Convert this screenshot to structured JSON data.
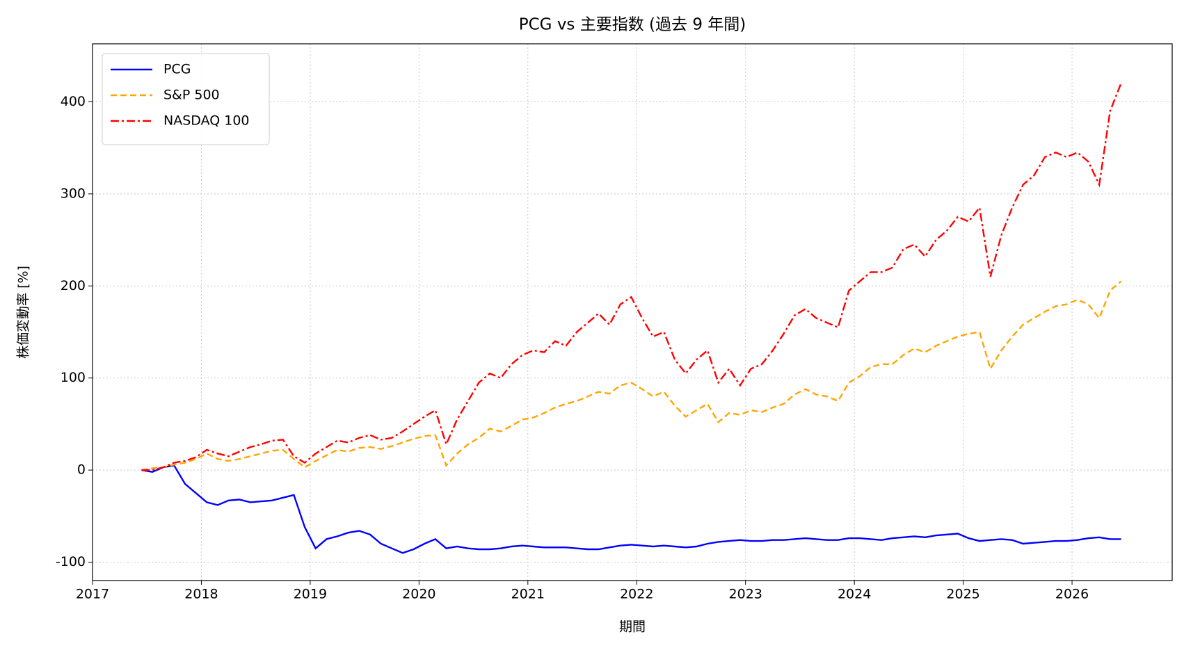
{
  "chart_data": {
    "type": "line",
    "title": "PCG vs 主要指数 (過去 9 年間)",
    "xlabel": "期間",
    "ylabel": "株価変動率 [%]",
    "x": [
      2017.45,
      2017.55,
      2017.65,
      2017.75,
      2017.85,
      2017.95,
      2018.05,
      2018.15,
      2018.25,
      2018.35,
      2018.45,
      2018.55,
      2018.65,
      2018.75,
      2018.85,
      2018.95,
      2019.05,
      2019.15,
      2019.25,
      2019.35,
      2019.45,
      2019.55,
      2019.65,
      2019.75,
      2019.85,
      2019.95,
      2020.05,
      2020.15,
      2020.25,
      2020.35,
      2020.45,
      2020.55,
      2020.65,
      2020.75,
      2020.85,
      2020.95,
      2021.05,
      2021.15,
      2021.25,
      2021.35,
      2021.45,
      2021.55,
      2021.65,
      2021.75,
      2021.85,
      2021.95,
      2022.05,
      2022.15,
      2022.25,
      2022.35,
      2022.45,
      2022.55,
      2022.65,
      2022.75,
      2022.85,
      2022.95,
      2023.05,
      2023.15,
      2023.25,
      2023.35,
      2023.45,
      2023.55,
      2023.65,
      2023.75,
      2023.85,
      2023.95,
      2024.05,
      2024.15,
      2024.25,
      2024.35,
      2024.45,
      2024.55,
      2024.65,
      2024.75,
      2024.85,
      2024.95,
      2025.05,
      2025.15,
      2025.25,
      2025.35,
      2025.45,
      2025.55,
      2025.65,
      2025.75,
      2025.85,
      2025.95,
      2026.05,
      2026.15,
      2026.25,
      2026.35,
      2026.45
    ],
    "series": [
      {
        "name": "PCG",
        "color": "#0000ff",
        "linestyle": "solid",
        "values": [
          0,
          -2,
          3,
          5,
          -15,
          -25,
          -35,
          -38,
          -33,
          -32,
          -35,
          -34,
          -33,
          -30,
          -27,
          -62,
          -85,
          -75,
          -72,
          -68,
          -66,
          -70,
          -80,
          -85,
          -90,
          -86,
          -80,
          -75,
          -85,
          -83,
          -85,
          -86,
          -86,
          -85,
          -83,
          -82,
          -83,
          -84,
          -84,
          -84,
          -85,
          -86,
          -86,
          -84,
          -82,
          -81,
          -82,
          -83,
          -82,
          -83,
          -84,
          -83,
          -80,
          -78,
          -77,
          -76,
          -77,
          -77,
          -76,
          -76,
          -75,
          -74,
          -75,
          -76,
          -76,
          -74,
          -74,
          -75,
          -76,
          -74,
          -73,
          -72,
          -73,
          -71,
          -70,
          -69,
          -74,
          -77,
          -76,
          -75,
          -76,
          -80,
          -79,
          -78,
          -77,
          -77,
          -76,
          -74,
          -73,
          -75,
          -75
        ]
      },
      {
        "name": "S&P 500",
        "color": "#ffa500",
        "linestyle": "dashed",
        "values": [
          0,
          2,
          3,
          6,
          8,
          12,
          18,
          12,
          10,
          12,
          15,
          18,
          21,
          22,
          12,
          3,
          10,
          16,
          22,
          20,
          24,
          25,
          23,
          26,
          30,
          34,
          37,
          38,
          5,
          18,
          28,
          35,
          45,
          42,
          48,
          55,
          57,
          62,
          68,
          72,
          75,
          80,
          85,
          83,
          92,
          95,
          88,
          80,
          85,
          70,
          58,
          65,
          72,
          52,
          62,
          60,
          65,
          63,
          68,
          72,
          82,
          88,
          82,
          80,
          75,
          95,
          102,
          112,
          115,
          115,
          125,
          132,
          128,
          135,
          140,
          145,
          148,
          150,
          110,
          130,
          145,
          158,
          165,
          172,
          178,
          180,
          185,
          180,
          165,
          195,
          205
        ]
      },
      {
        "name": "NASDAQ 100",
        "color": "#ff0000",
        "linestyle": "dashdot",
        "values": [
          0,
          0,
          3,
          8,
          10,
          14,
          22,
          18,
          15,
          20,
          25,
          28,
          32,
          33,
          15,
          8,
          18,
          25,
          32,
          30,
          35,
          38,
          33,
          35,
          42,
          50,
          58,
          65,
          28,
          55,
          75,
          95,
          105,
          100,
          115,
          125,
          130,
          128,
          140,
          135,
          150,
          160,
          170,
          158,
          180,
          188,
          165,
          145,
          150,
          120,
          105,
          120,
          130,
          95,
          110,
          92,
          110,
          115,
          130,
          148,
          168,
          175,
          165,
          160,
          155,
          195,
          205,
          215,
          215,
          220,
          240,
          245,
          232,
          250,
          260,
          275,
          270,
          285,
          210,
          255,
          285,
          310,
          320,
          340,
          345,
          340,
          345,
          335,
          310,
          390,
          420
        ]
      }
    ],
    "xlim": [
      2017,
      2026.92
    ],
    "xticks": [
      2017,
      2018,
      2019,
      2020,
      2021,
      2022,
      2023,
      2024,
      2025,
      2026
    ],
    "ylim": [
      -120,
      463
    ],
    "yticks": [
      -100,
      0,
      100,
      200,
      300,
      400
    ],
    "grid": true,
    "legend": "upper left"
  }
}
